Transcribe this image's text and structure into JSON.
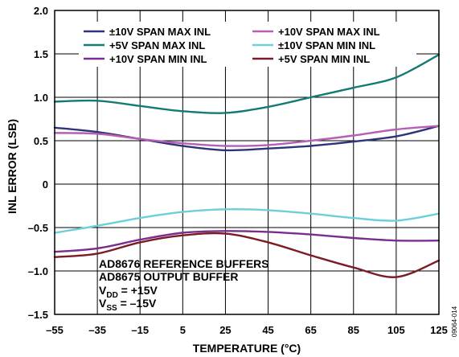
{
  "chart_data": {
    "type": "line",
    "xlabel": "TEMPERATURE (°C)",
    "ylabel": "INL ERROR (LSB)",
    "xlim": [
      -55,
      125
    ],
    "ylim": [
      -1.5,
      2.0
    ],
    "xticks": [
      -55,
      -35,
      -15,
      5,
      25,
      45,
      65,
      85,
      105,
      125
    ],
    "xtick_labels": [
      "–55",
      "–35",
      "–15",
      "5",
      "25",
      "45",
      "65",
      "85",
      "105",
      "125"
    ],
    "yticks": [
      -1.5,
      -1.0,
      -0.5,
      0,
      0.5,
      1.0,
      1.5,
      2.0
    ],
    "ytick_labels": [
      "–1.5",
      "–1.0",
      "–0.5",
      "0",
      "0.5",
      "1.0",
      "1.5",
      "2.0"
    ],
    "grid": true,
    "legend_position": "top",
    "x": [
      -55,
      -35,
      -15,
      5,
      25,
      45,
      65,
      85,
      105,
      125
    ],
    "series": [
      {
        "name": "±10V SPAN MAX INL",
        "color": "#2e3478",
        "values": [
          0.65,
          0.6,
          0.52,
          0.44,
          0.39,
          0.41,
          0.44,
          0.49,
          0.55,
          0.67
        ]
      },
      {
        "name": "+10V SPAN MAX INL",
        "color": "#b65fb4",
        "values": [
          0.59,
          0.58,
          0.52,
          0.47,
          0.44,
          0.45,
          0.5,
          0.56,
          0.63,
          0.67
        ]
      },
      {
        "name": "+5V SPAN MAX INL",
        "color": "#137a74",
        "values": [
          0.95,
          0.96,
          0.9,
          0.84,
          0.82,
          0.89,
          1.0,
          1.11,
          1.23,
          1.49
        ]
      },
      {
        "name": "±10V SPAN MIN INL",
        "color": "#6ccfd9",
        "values": [
          -0.56,
          -0.48,
          -0.39,
          -0.32,
          -0.29,
          -0.3,
          -0.34,
          -0.39,
          -0.42,
          -0.34
        ]
      },
      {
        "name": "+10V SPAN MIN INL",
        "color": "#7b2d8e",
        "values": [
          -0.78,
          -0.74,
          -0.64,
          -0.56,
          -0.54,
          -0.55,
          -0.58,
          -0.62,
          -0.65,
          -0.65
        ]
      },
      {
        "name": "+5V SPAN MIN INL",
        "color": "#7b1c24",
        "values": [
          -0.84,
          -0.8,
          -0.67,
          -0.59,
          -0.57,
          -0.67,
          -0.82,
          -0.96,
          -1.07,
          -0.88
        ]
      }
    ],
    "annotations": {
      "line1": "AD8676 REFERENCE BUFFERS",
      "line2": "AD8675 OUTPUT BUFFER",
      "vdd_main": "V",
      "vdd_sub": "DD",
      "vdd_value": " = +15V",
      "vss_main": "V",
      "vss_sub": "SS",
      "vss_value": " = –15V"
    },
    "figure_id": "09064-014"
  }
}
